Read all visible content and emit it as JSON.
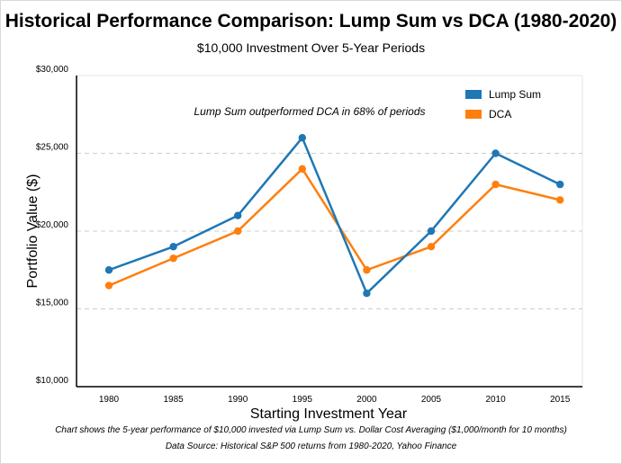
{
  "chart_data": {
    "type": "line",
    "title": "Historical Performance Comparison: Lump Sum vs DCA (1980-2020)",
    "subtitle": "$10,000 Investment Over 5-Year Periods",
    "xlabel": "Starting Investment Year",
    "ylabel": "Portfolio Value ($)",
    "categories": [
      "1980",
      "1985",
      "1990",
      "1995",
      "2000",
      "2005",
      "2010",
      "2015"
    ],
    "series": [
      {
        "name": "Lump Sum",
        "color": "#1f77b4",
        "values": [
          17500,
          19000,
          21000,
          26000,
          16000,
          20000,
          25000,
          23000
        ]
      },
      {
        "name": "DCA",
        "color": "#ff7f0e",
        "values": [
          16500,
          18250,
          20000,
          24000,
          17500,
          19000,
          23000,
          22000
        ]
      }
    ],
    "ylim": [
      10000,
      30000
    ],
    "yticks": [
      10000,
      15000,
      20000,
      25000,
      30000
    ],
    "ytick_labels": [
      "$10,000",
      "$15,000",
      "$20,000",
      "$25,000",
      "$30,000"
    ],
    "grid": "horizontal dashed",
    "legend_position": "top-right",
    "annotation": "Lump Sum outperformed DCA in 68% of periods",
    "caption": "Chart shows the 5-year performance of $10,000 invested via Lump Sum vs. Dollar Cost Averaging ($1,000/month for 10 months)",
    "source": "Data Source: Historical S&P 500 returns from 1980-2020, Yahoo Finance"
  }
}
